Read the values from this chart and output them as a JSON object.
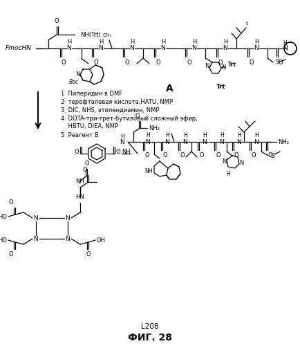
{
  "title": "ФИГ. 28",
  "label": "L208",
  "background_color": "#ffffff",
  "label_A": "A",
  "reaction_steps": [
    "1  Пиперидин в DMF",
    "2  терефталевая кислота,HATU, NMP",
    "3  DIC, NHS, этилендиамин, NMP",
    "4  DOTA-три-трет-бутиловый сложный эфир,",
    "    HBTU, DIEA, NMP",
    "5  Реагент B"
  ],
  "figsize": [
    4.35,
    5.0
  ],
  "dpi": 100
}
